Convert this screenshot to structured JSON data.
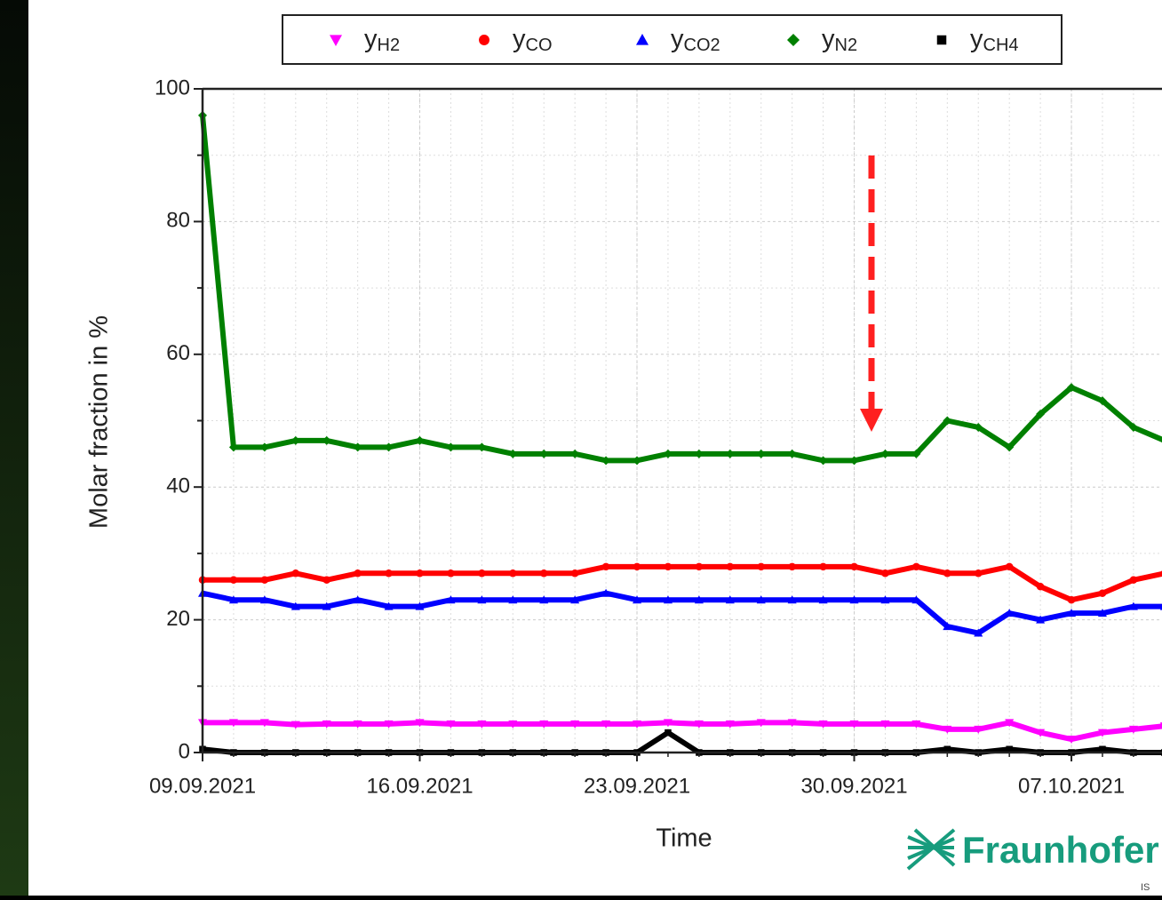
{
  "chart_data": {
    "type": "scatter",
    "x_label": "Time",
    "y_label": "Molar fraction in %",
    "x": [
      "2021-09-09",
      "2021-09-10",
      "2021-09-11",
      "2021-09-12",
      "2021-09-13",
      "2021-09-14",
      "2021-09-15",
      "2021-09-16",
      "2021-09-17",
      "2021-09-18",
      "2021-09-19",
      "2021-09-20",
      "2021-09-21",
      "2021-09-22",
      "2021-09-23",
      "2021-09-24",
      "2021-09-25",
      "2021-09-26",
      "2021-09-27",
      "2021-09-28",
      "2021-09-29",
      "2021-09-30",
      "2021-10-01",
      "2021-10-02",
      "2021-10-03",
      "2021-10-04",
      "2021-10-05",
      "2021-10-06",
      "2021-10-07",
      "2021-10-08",
      "2021-10-09",
      "2021-10-10"
    ],
    "series": [
      {
        "name": "yH2",
        "color": "#ff00ff",
        "marker": "triangle-down",
        "values": [
          4.5,
          4.5,
          4.5,
          4.2,
          4.3,
          4.3,
          4.3,
          4.5,
          4.3,
          4.3,
          4.3,
          4.3,
          4.3,
          4.3,
          4.3,
          4.5,
          4.3,
          4.3,
          4.5,
          4.5,
          4.3,
          4.3,
          4.3,
          4.3,
          3.5,
          3.5,
          4.5,
          3,
          2,
          3,
          3.5,
          4
        ]
      },
      {
        "name": "yCO",
        "color": "#ff0000",
        "marker": "circle",
        "values": [
          26,
          26,
          26,
          27,
          26,
          27,
          27,
          27,
          27,
          27,
          27,
          27,
          27,
          28,
          28,
          28,
          28,
          28,
          28,
          28,
          28,
          28,
          27,
          28,
          27,
          27,
          28,
          25,
          23,
          24,
          26,
          27
        ]
      },
      {
        "name": "yCO2",
        "color": "#0000ff",
        "marker": "triangle-up",
        "values": [
          24,
          23,
          23,
          22,
          22,
          23,
          22,
          22,
          23,
          23,
          23,
          23,
          23,
          24,
          23,
          23,
          23,
          23,
          23,
          23,
          23,
          23,
          23,
          23,
          19,
          18,
          21,
          20,
          21,
          21,
          22,
          22
        ]
      },
      {
        "name": "yN2",
        "color": "#008000",
        "marker": "diamond",
        "values": [
          96,
          46,
          46,
          47,
          47,
          46,
          46,
          47,
          46,
          46,
          45,
          45,
          45,
          44,
          44,
          45,
          45,
          45,
          45,
          45,
          44,
          44,
          45,
          45,
          50,
          49,
          46,
          51,
          55,
          53,
          49,
          47
        ]
      },
      {
        "name": "yCH4",
        "color": "#000000",
        "marker": "square",
        "values": [
          0.5,
          0,
          0,
          0,
          0,
          0,
          0,
          0,
          0,
          0,
          0,
          0,
          0,
          0,
          0,
          3,
          0,
          0,
          0,
          0,
          0,
          0,
          0,
          0,
          0.5,
          0,
          0.5,
          0,
          0,
          0.5,
          0,
          0
        ]
      }
    ],
    "xlim": [
      "2021-09-09",
      "2021-10-10"
    ],
    "xticks": [
      {
        "value": "2021-09-09",
        "label": "09.09.2021"
      },
      {
        "value": "2021-09-16",
        "label": "16.09.2021"
      },
      {
        "value": "2021-09-23",
        "label": "23.09.2021"
      },
      {
        "value": "2021-09-30",
        "label": "30.09.2021"
      },
      {
        "value": "2021-10-07",
        "label": "07.10.2021"
      }
    ],
    "ylim": [
      0,
      100
    ],
    "yticks": [
      0,
      20,
      40,
      60,
      80,
      100
    ],
    "grid": true,
    "legend": "top"
  },
  "logo": {
    "text": "Fraunhofer",
    "subtext": "IS"
  }
}
